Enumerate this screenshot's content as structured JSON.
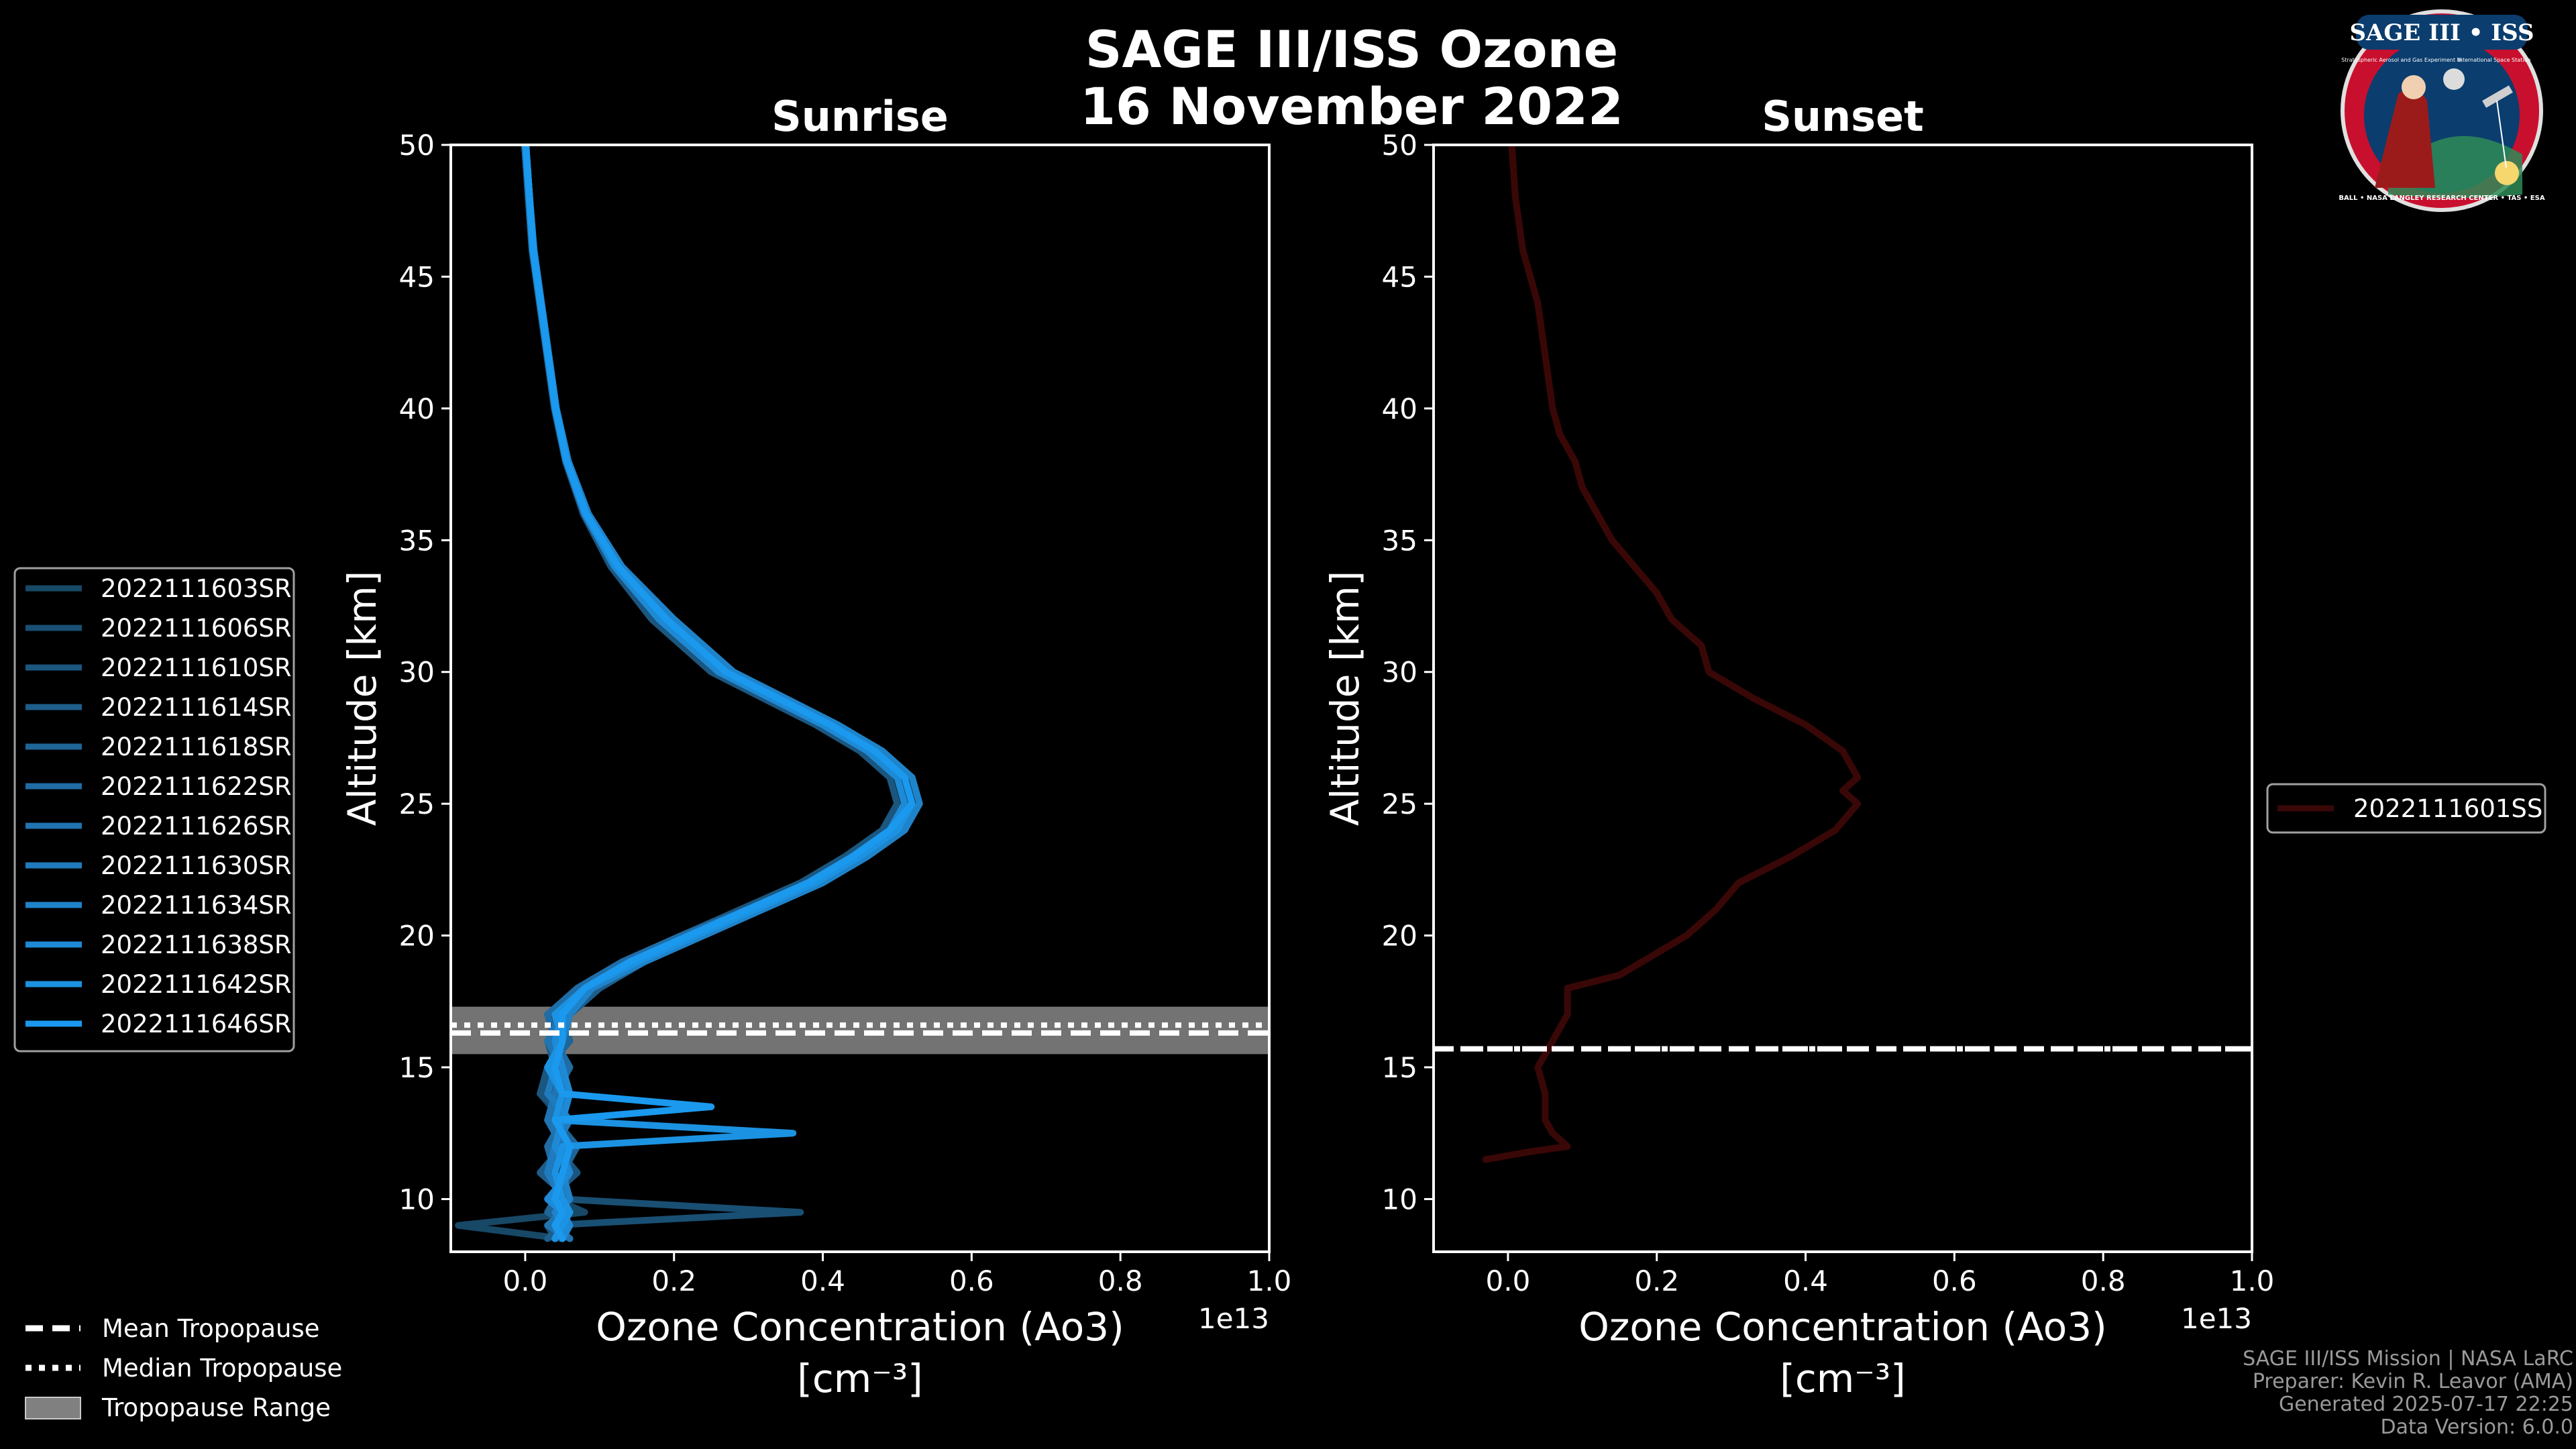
{
  "title_line1": "SAGE III/ISS Ozone",
  "title_line2": "16 November 2022",
  "logo": {
    "text": "SAGE III • ISS",
    "ring_text": "BALL • NASA LANGLEY RESEARCH CENTER • TAS • ESA",
    "small_text_left": "Stratospheric Aerosol and Gas Experiment III",
    "small_text_right": "International Space Station",
    "colors": {
      "ring": "#c8102e",
      "field": "#0b3d6e",
      "white": "#ffffff"
    }
  },
  "chart_data": [
    {
      "type": "line",
      "title": "Sunrise",
      "xlabel": "Ozone Concentration (Ao3)",
      "xlabel_units": "[cm⁻³]",
      "ylabel": "Altitude [km]",
      "x_scale_label": "1e13",
      "xlim": [
        -0.1,
        1.0
      ],
      "ylim": [
        8,
        50
      ],
      "xticks": [
        "0.0",
        "0.2",
        "0.4",
        "0.6",
        "0.8",
        "1.0"
      ],
      "yticks": [
        "10",
        "15",
        "20",
        "25",
        "30",
        "35",
        "40",
        "45",
        "50"
      ],
      "x_units": "1e13 cm^-3",
      "series_colors": [
        "#174866",
        "#194f73",
        "#1b567f",
        "#1d5e8c",
        "#1e6598",
        "#206ca5",
        "#2074b1",
        "#207bbe",
        "#1f83ca",
        "#1e8ad6",
        "#1c92e2",
        "#1a99ee"
      ],
      "series": [
        {
          "name": "2022111603SR",
          "y": [
            8.5,
            9,
            9.5,
            10,
            11,
            12,
            13,
            14,
            15,
            16,
            17,
            18,
            19,
            20,
            21,
            22,
            23,
            24,
            25,
            26,
            27,
            28,
            29,
            30,
            32,
            34,
            36,
            38,
            40,
            42,
            44,
            46,
            48,
            50
          ],
          "x": [
            0.05,
            -0.09,
            0.08,
            0.04,
            0.06,
            0.03,
            0.05,
            0.02,
            0.04,
            0.05,
            0.03,
            0.08,
            0.14,
            0.22,
            0.3,
            0.38,
            0.44,
            0.49,
            0.51,
            0.5,
            0.46,
            0.4,
            0.33,
            0.26,
            0.18,
            0.12,
            0.08,
            0.055,
            0.04,
            0.03,
            0.02,
            0.01,
            0.005,
            0.0
          ]
        },
        {
          "name": "2022111606SR",
          "y": [
            8.5,
            9,
            9.5,
            10,
            11,
            12,
            13,
            14,
            15,
            16,
            17,
            18,
            19,
            20,
            21,
            22,
            23,
            24,
            25,
            26,
            27,
            28,
            29,
            30,
            32,
            34,
            36,
            38,
            40,
            42,
            44,
            46,
            48,
            50
          ],
          "x": [
            0.04,
            0.03,
            0.37,
            0.05,
            0.03,
            0.06,
            0.04,
            0.03,
            0.05,
            0.04,
            0.05,
            0.09,
            0.15,
            0.23,
            0.31,
            0.39,
            0.45,
            0.5,
            0.52,
            0.51,
            0.47,
            0.41,
            0.34,
            0.27,
            0.19,
            0.125,
            0.082,
            0.056,
            0.041,
            0.031,
            0.021,
            0.011,
            0.006,
            0.001
          ]
        },
        {
          "name": "2022111610SR",
          "y": [
            8.5,
            9,
            9.5,
            10,
            11,
            12,
            13,
            14,
            15,
            16,
            17,
            18,
            19,
            20,
            21,
            22,
            23,
            24,
            25,
            26,
            27,
            28,
            29,
            30,
            32,
            34,
            36,
            38,
            40,
            42,
            44,
            46,
            48,
            50
          ],
          "x": [
            0.06,
            0.04,
            0.05,
            0.03,
            0.07,
            0.04,
            0.06,
            0.02,
            0.03,
            0.05,
            0.04,
            0.07,
            0.13,
            0.21,
            0.29,
            0.37,
            0.43,
            0.48,
            0.5,
            0.49,
            0.45,
            0.39,
            0.32,
            0.25,
            0.17,
            0.115,
            0.078,
            0.054,
            0.039,
            0.029,
            0.019,
            0.009,
            0.004,
            -0.001
          ]
        },
        {
          "name": "2022111614SR",
          "y": [
            8.5,
            9,
            9.5,
            10,
            11,
            12,
            13,
            14,
            15,
            16,
            17,
            18,
            19,
            20,
            21,
            22,
            23,
            24,
            25,
            26,
            27,
            28,
            29,
            30,
            32,
            34,
            36,
            38,
            40,
            42,
            44,
            46,
            48,
            50
          ],
          "x": [
            0.03,
            0.05,
            0.04,
            0.06,
            0.02,
            0.05,
            0.03,
            0.06,
            0.04,
            0.03,
            0.06,
            0.1,
            0.16,
            0.24,
            0.32,
            0.4,
            0.46,
            0.51,
            0.53,
            0.52,
            0.48,
            0.42,
            0.35,
            0.28,
            0.2,
            0.13,
            0.085,
            0.058,
            0.042,
            0.032,
            0.022,
            0.012,
            0.006,
            0.001
          ]
        },
        {
          "name": "2022111618SR",
          "y": [
            8.5,
            9,
            9.5,
            10,
            11,
            12,
            13,
            14,
            15,
            16,
            17,
            18,
            19,
            20,
            21,
            22,
            23,
            24,
            25,
            26,
            27,
            28,
            29,
            30,
            32,
            34,
            36,
            38,
            40,
            42,
            44,
            46,
            48,
            50
          ],
          "x": [
            0.05,
            0.06,
            0.03,
            0.04,
            0.05,
            0.07,
            0.04,
            0.05,
            0.03,
            0.06,
            0.05,
            0.08,
            0.14,
            0.22,
            0.3,
            0.38,
            0.44,
            0.49,
            0.52,
            0.51,
            0.47,
            0.41,
            0.33,
            0.26,
            0.18,
            0.12,
            0.08,
            0.055,
            0.04,
            0.03,
            0.02,
            0.01,
            0.005,
            0.0
          ]
        },
        {
          "name": "2022111622SR",
          "y": [
            8.5,
            9,
            9.5,
            10,
            11,
            12,
            13,
            14,
            15,
            16,
            17,
            18,
            19,
            20,
            21,
            22,
            23,
            24,
            25,
            26,
            27,
            28,
            29,
            30,
            32,
            34,
            36,
            38,
            40,
            42,
            44,
            46,
            48,
            50
          ],
          "x": [
            0.04,
            0.05,
            0.06,
            0.05,
            0.04,
            0.03,
            0.05,
            0.04,
            0.06,
            0.04,
            0.03,
            0.07,
            0.13,
            0.21,
            0.3,
            0.38,
            0.45,
            0.5,
            0.51,
            0.5,
            0.46,
            0.4,
            0.33,
            0.26,
            0.18,
            0.12,
            0.08,
            0.055,
            0.04,
            0.03,
            0.02,
            0.01,
            0.005,
            0.0
          ]
        },
        {
          "name": "2022111626SR",
          "y": [
            8.5,
            9,
            9.5,
            10,
            11,
            12,
            13,
            14,
            15,
            16,
            17,
            18,
            19,
            20,
            21,
            22,
            23,
            24,
            25,
            26,
            27,
            28,
            29,
            30,
            32,
            34,
            36,
            38,
            40,
            42,
            44,
            46,
            48,
            50
          ],
          "x": [
            0.06,
            0.03,
            0.05,
            0.04,
            0.06,
            0.05,
            0.03,
            0.04,
            0.05,
            0.03,
            0.05,
            0.09,
            0.15,
            0.23,
            0.31,
            0.39,
            0.45,
            0.5,
            0.52,
            0.51,
            0.47,
            0.41,
            0.34,
            0.27,
            0.19,
            0.125,
            0.082,
            0.056,
            0.041,
            0.031,
            0.021,
            0.011,
            0.006,
            0.001
          ]
        },
        {
          "name": "2022111630SR",
          "y": [
            8.5,
            9,
            9.5,
            10,
            11,
            12,
            13,
            14,
            15,
            16,
            17,
            18,
            19,
            20,
            21,
            22,
            23,
            24,
            25,
            26,
            27,
            28,
            29,
            30,
            32,
            34,
            36,
            38,
            40,
            42,
            44,
            46,
            48,
            50
          ],
          "x": [
            0.05,
            0.04,
            0.06,
            0.05,
            0.03,
            0.04,
            0.06,
            0.03,
            0.04,
            0.05,
            0.04,
            0.08,
            0.14,
            0.22,
            0.3,
            0.38,
            0.44,
            0.49,
            0.51,
            0.5,
            0.46,
            0.4,
            0.33,
            0.26,
            0.18,
            0.12,
            0.08,
            0.055,
            0.04,
            0.03,
            0.02,
            0.01,
            0.005,
            0.0
          ]
        },
        {
          "name": "2022111634SR",
          "y": [
            8.5,
            9,
            9.5,
            10,
            11,
            12,
            13,
            14,
            15,
            16,
            17,
            18,
            19,
            20,
            21,
            22,
            23,
            24,
            25,
            26,
            27,
            28,
            29,
            30,
            32,
            34,
            36,
            38,
            40,
            42,
            44,
            46,
            48,
            50
          ],
          "x": [
            0.04,
            0.05,
            0.04,
            0.06,
            0.05,
            0.06,
            0.04,
            0.05,
            0.04,
            0.05,
            0.06,
            0.09,
            0.16,
            0.24,
            0.32,
            0.4,
            0.46,
            0.51,
            0.53,
            0.52,
            0.48,
            0.42,
            0.35,
            0.28,
            0.2,
            0.13,
            0.085,
            0.058,
            0.042,
            0.032,
            0.022,
            0.012,
            0.006,
            0.001
          ]
        },
        {
          "name": "2022111638SR",
          "y": [
            8.5,
            9,
            9.5,
            10,
            11,
            12,
            13,
            14,
            15,
            16,
            17,
            18,
            19,
            20,
            21,
            22,
            23,
            24,
            25,
            26,
            27,
            28,
            29,
            30,
            32,
            34,
            36,
            38,
            40,
            42,
            44,
            46,
            48,
            50
          ],
          "x": [
            0.05,
            0.06,
            0.05,
            0.03,
            0.06,
            0.04,
            0.05,
            0.06,
            0.05,
            0.04,
            0.05,
            0.08,
            0.14,
            0.22,
            0.3,
            0.38,
            0.44,
            0.49,
            0.51,
            0.5,
            0.46,
            0.4,
            0.33,
            0.26,
            0.18,
            0.12,
            0.08,
            0.055,
            0.04,
            0.03,
            0.02,
            0.01,
            0.005,
            0.0
          ]
        },
        {
          "name": "2022111642SR",
          "y": [
            8.5,
            9,
            9.5,
            10,
            11,
            12,
            12.5,
            13,
            14,
            15,
            16,
            17,
            18,
            19,
            20,
            21,
            22,
            23,
            24,
            25,
            26,
            27,
            28,
            29,
            30,
            32,
            34,
            36,
            38,
            40,
            42,
            44,
            46,
            48,
            50
          ],
          "x": [
            0.04,
            0.05,
            0.06,
            0.05,
            0.04,
            0.05,
            0.36,
            0.04,
            0.05,
            0.03,
            0.05,
            0.04,
            0.08,
            0.15,
            0.23,
            0.31,
            0.39,
            0.45,
            0.5,
            0.52,
            0.51,
            0.47,
            0.41,
            0.34,
            0.27,
            0.19,
            0.125,
            0.082,
            0.056,
            0.041,
            0.031,
            0.021,
            0.011,
            0.006,
            0.001
          ]
        },
        {
          "name": "2022111646SR",
          "y": [
            8.5,
            9,
            9.5,
            10,
            11,
            12,
            13,
            13.5,
            14,
            15,
            16,
            17,
            18,
            19,
            20,
            21,
            22,
            23,
            24,
            25,
            26,
            27,
            28,
            29,
            30,
            32,
            34,
            36,
            38,
            40,
            42,
            44,
            46,
            48,
            50
          ],
          "x": [
            0.05,
            0.04,
            0.05,
            0.04,
            0.05,
            0.06,
            0.04,
            0.25,
            0.05,
            0.04,
            0.05,
            0.05,
            0.08,
            0.14,
            0.22,
            0.3,
            0.38,
            0.44,
            0.49,
            0.52,
            0.51,
            0.47,
            0.41,
            0.34,
            0.27,
            0.19,
            0.125,
            0.082,
            0.056,
            0.041,
            0.031,
            0.021,
            0.011,
            0.006,
            0.001
          ]
        }
      ],
      "tropopause": {
        "mean": 16.3,
        "median": 16.6,
        "range": [
          15.5,
          17.3
        ],
        "range_color": "#808080"
      }
    },
    {
      "type": "line",
      "title": "Sunset",
      "xlabel": "Ozone Concentration (Ao3)",
      "xlabel_units": "[cm⁻³]",
      "ylabel": "Altitude [km]",
      "x_scale_label": "1e13",
      "xlim": [
        -0.1,
        1.0
      ],
      "ylim": [
        8,
        50
      ],
      "xticks": [
        "0.0",
        "0.2",
        "0.4",
        "0.6",
        "0.8",
        "1.0"
      ],
      "yticks": [
        "10",
        "15",
        "20",
        "25",
        "30",
        "35",
        "40",
        "45",
        "50"
      ],
      "x_units": "1e13 cm^-3",
      "series_colors": [
        "#3a0707"
      ],
      "series": [
        {
          "name": "2022111601SS",
          "y": [
            11.5,
            11.8,
            12,
            12.5,
            13,
            14,
            15,
            15.5,
            16,
            17,
            18,
            18.5,
            19,
            20,
            21,
            22,
            23,
            24,
            25,
            25.5,
            26,
            27,
            28,
            29,
            30,
            31,
            32,
            33,
            34,
            35,
            36,
            37,
            38,
            39,
            40,
            42,
            44,
            46,
            48,
            50
          ],
          "x": [
            -0.03,
            0.03,
            0.08,
            0.06,
            0.05,
            0.05,
            0.04,
            0.05,
            0.06,
            0.08,
            0.08,
            0.15,
            0.18,
            0.24,
            0.28,
            0.31,
            0.38,
            0.44,
            0.47,
            0.45,
            0.47,
            0.45,
            0.4,
            0.33,
            0.27,
            0.26,
            0.22,
            0.2,
            0.17,
            0.14,
            0.12,
            0.1,
            0.09,
            0.07,
            0.06,
            0.05,
            0.04,
            0.02,
            0.01,
            0.005
          ]
        }
      ],
      "tropopause": {
        "mean": 15.7,
        "median": 15.7
      }
    }
  ],
  "legend_bottom": {
    "mean": "Mean Tropopause",
    "median": "Median Tropopause",
    "range": "Tropopause Range"
  },
  "credits": {
    "line1": "SAGE III/ISS Mission | NASA LaRC",
    "line2": "Preparer: Kevin R. Leavor (AMA)",
    "line3": "Generated 2025-07-17 22:25",
    "line4": "Data Version: 6.0.0"
  }
}
